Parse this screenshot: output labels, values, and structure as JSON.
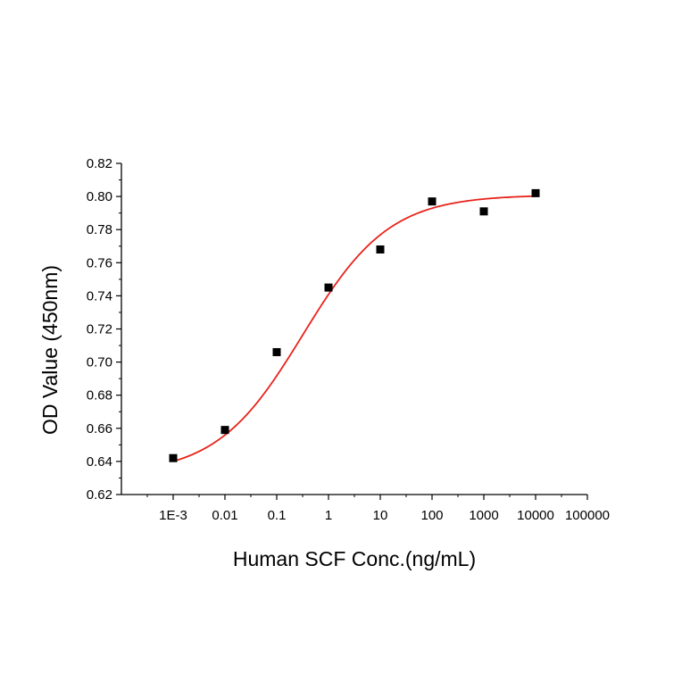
{
  "chart_data": {
    "type": "scatter",
    "title": "",
    "xlabel": "Human SCF Conc.(ng/mL)",
    "ylabel": "OD Value (450nm)",
    "x_scale": "log",
    "xlim": [
      0.0001,
      100000
    ],
    "ylim": [
      0.62,
      0.82
    ],
    "x_ticks": [
      {
        "value": 0.001,
        "label": "1E-3"
      },
      {
        "value": 0.01,
        "label": "0.01"
      },
      {
        "value": 0.1,
        "label": "0.1"
      },
      {
        "value": 1,
        "label": "1"
      },
      {
        "value": 10,
        "label": "10"
      },
      {
        "value": 100,
        "label": "100"
      },
      {
        "value": 1000,
        "label": "1000"
      },
      {
        "value": 10000,
        "label": "10000"
      },
      {
        "value": 100000,
        "label": "100000"
      }
    ],
    "y_ticks": [
      {
        "value": 0.62,
        "label": "0.62"
      },
      {
        "value": 0.64,
        "label": "0.64"
      },
      {
        "value": 0.66,
        "label": "0.66"
      },
      {
        "value": 0.68,
        "label": "0.68"
      },
      {
        "value": 0.7,
        "label": "0.70"
      },
      {
        "value": 0.72,
        "label": "0.72"
      },
      {
        "value": 0.74,
        "label": "0.74"
      },
      {
        "value": 0.76,
        "label": "0.76"
      },
      {
        "value": 0.78,
        "label": "0.78"
      },
      {
        "value": 0.8,
        "label": "0.80"
      },
      {
        "value": 0.82,
        "label": "0.82"
      }
    ],
    "grid": false,
    "points": [
      {
        "x": 0.001,
        "y": 0.642
      },
      {
        "x": 0.01,
        "y": 0.659
      },
      {
        "x": 0.1,
        "y": 0.706
      },
      {
        "x": 1,
        "y": 0.745
      },
      {
        "x": 10,
        "y": 0.768
      },
      {
        "x": 100,
        "y": 0.797
      },
      {
        "x": 1000,
        "y": 0.791
      },
      {
        "x": 10000,
        "y": 0.802
      }
    ],
    "fit_curve": {
      "type": "4PL",
      "bottom": 0.632,
      "top": 0.801,
      "ec50": 0.32,
      "hill": 0.52,
      "x_range": [
        0.001,
        10000
      ]
    },
    "colors": {
      "points": "#000000",
      "fit_line": "#e8231b",
      "axis": "#000000"
    }
  }
}
